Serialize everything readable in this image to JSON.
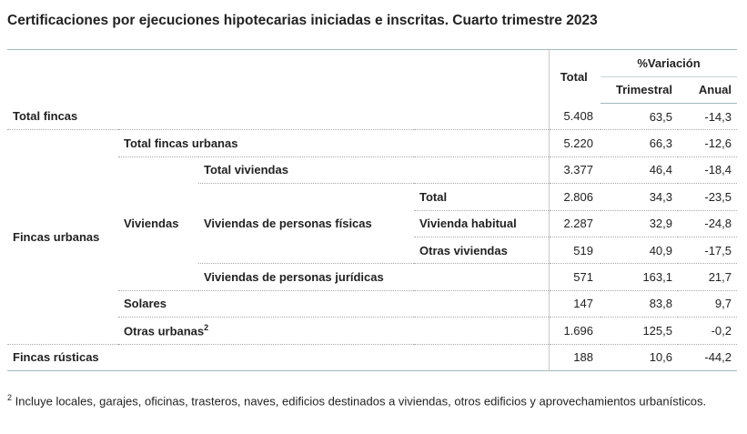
{
  "title": "Certificaciones por ejecuciones hipotecarias iniciadas e inscritas. Cuarto trimestre 2023",
  "table": {
    "header": {
      "total": "Total",
      "variacion": "%Variación",
      "trimestral": "Trimestral",
      "anual": "Anual"
    },
    "rows": [
      {
        "label": "Total fincas",
        "values": [
          "5.408",
          "63,5",
          "-14,3"
        ]
      },
      {
        "group": "Fincas urbanas",
        "label": "Total fincas urbanas",
        "values": [
          "5.220",
          "66,3",
          "-12,6"
        ]
      },
      {
        "group": "Viviendas",
        "label": "Total viviendas",
        "values": [
          "3.377",
          "46,4",
          "-18,4"
        ]
      },
      {
        "group": "Viviendas de personas físicas",
        "label": "Total",
        "values": [
          "2.806",
          "34,3",
          "-23,5"
        ]
      },
      {
        "label": "Vivienda habitual",
        "values": [
          "2.287",
          "32,9",
          "-24,8"
        ]
      },
      {
        "label": "Otras viviendas",
        "values": [
          "519",
          "40,9",
          "-17,5"
        ]
      },
      {
        "label": "Viviendas de personas jurídicas",
        "values": [
          "571",
          "163,1",
          "21,7"
        ]
      },
      {
        "label": "Solares",
        "values": [
          "147",
          "83,8",
          "9,7"
        ]
      },
      {
        "label": "Otras urbanas",
        "note": "2",
        "values": [
          "1.696",
          "125,5",
          "-0,2"
        ]
      },
      {
        "label": "Fincas rústicas",
        "values": [
          "188",
          "10,6",
          "-44,2"
        ]
      }
    ]
  },
  "footnote": {
    "marker": "2",
    "text": "Incluye locales, garajes, oficinas, trasteros, naves, edificios destinados a viviendas, otros edificios y aprovechamientos urbanísticos."
  }
}
